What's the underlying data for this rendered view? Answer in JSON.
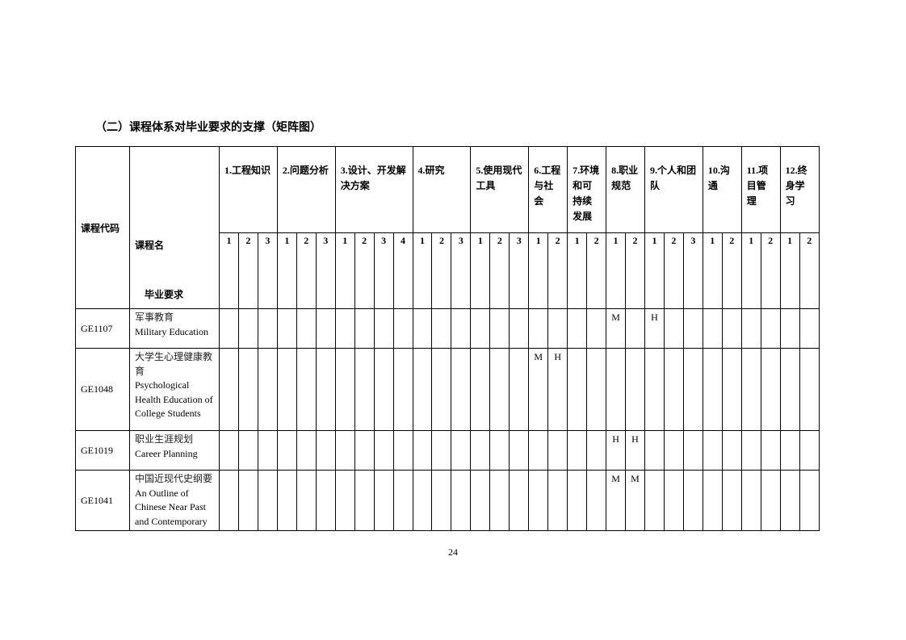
{
  "title": "（二）课程体系对毕业要求的支撑（矩阵图）",
  "header": {
    "code_label": "课程代码",
    "name_label": "课程名",
    "req_label": "毕业要求",
    "groups": [
      {
        "label": "1.工程知识",
        "subs": [
          "1",
          "2",
          "3"
        ]
      },
      {
        "label": "2.问题分析",
        "subs": [
          "1",
          "2",
          "3"
        ]
      },
      {
        "label": "3.设计、开发解决方案",
        "subs": [
          "1",
          "2",
          "3",
          "4"
        ]
      },
      {
        "label": "4.研究",
        "subs": [
          "1",
          "2",
          "3"
        ]
      },
      {
        "label": "5.使用现代工具",
        "subs": [
          "1",
          "2",
          "3"
        ]
      },
      {
        "label": "6.工程与社会",
        "subs": [
          "1",
          "2"
        ]
      },
      {
        "label": "7.环境和可持续发展",
        "subs": [
          "1",
          "2"
        ]
      },
      {
        "label": "8.职业规范",
        "subs": [
          "1",
          "2"
        ]
      },
      {
        "label": "9.个人和团队",
        "subs": [
          "1",
          "2",
          "3"
        ]
      },
      {
        "label": "10.沟通",
        "subs": [
          "1",
          "2"
        ]
      },
      {
        "label": "11.项目管理",
        "subs": [
          "1",
          "2"
        ]
      },
      {
        "label": "12.终身学习",
        "subs": [
          "1",
          "2"
        ]
      }
    ]
  },
  "rows": [
    {
      "code": "GE1107",
      "name_cn": "军事教育",
      "name_en": "Military Education",
      "marks": {
        "8.1": "M",
        "9.1": "H"
      }
    },
    {
      "code": "GE1048",
      "name_cn": "大学生心理健康教育",
      "name_en": "Psychological Health Education of College Students",
      "marks": {
        "6.1": "M",
        "6.2": "H"
      }
    },
    {
      "code": "GE1019",
      "name_cn": "职业生涯规划",
      "name_en": "Career Planning",
      "marks": {
        "8.1": "H",
        "8.2": "H"
      }
    },
    {
      "code": "GE1041",
      "name_cn": "中国近现代史纲要",
      "name_en": "An Outline of Chinese Near Past and Contemporary",
      "marks": {
        "8.1": "M",
        "8.2": "M"
      }
    }
  ],
  "page_number": "24"
}
